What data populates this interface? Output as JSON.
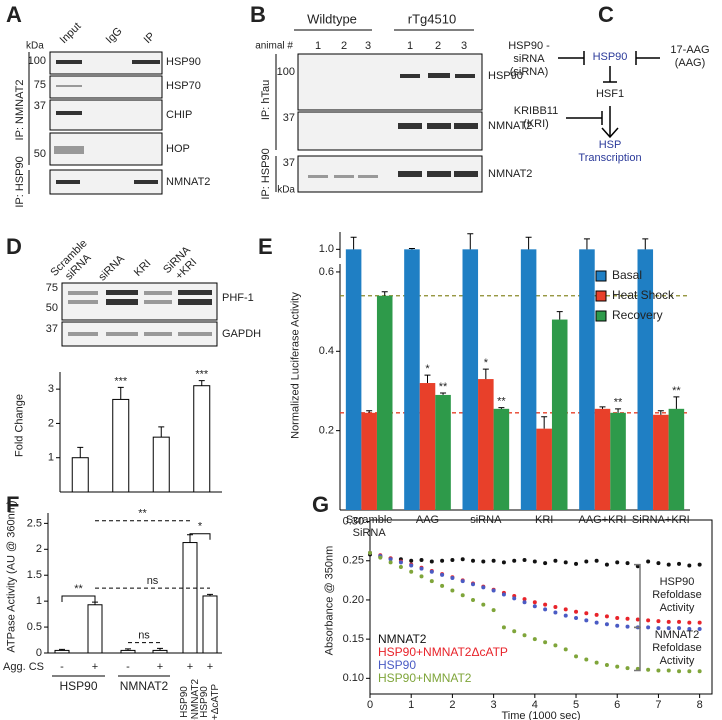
{
  "panels": {
    "A": {
      "letter": "A",
      "kda": "kDa",
      "lanes": [
        "Input",
        "IgG",
        "IP"
      ],
      "markers": [
        100,
        75,
        37,
        50
      ],
      "bands": [
        "HSP90",
        "HSP70",
        "CHIP",
        "HOP",
        "NMNAT2"
      ],
      "ip": [
        "IP: NMNAT2",
        "IP: HSP90"
      ]
    },
    "B": {
      "letter": "B",
      "groups": [
        "Wildtype",
        "rTg4510"
      ],
      "animal": "animal #",
      "lanes": [
        1,
        2,
        3,
        1,
        2,
        3
      ],
      "markers": [
        100,
        37,
        37
      ],
      "kda": "kDa",
      "bands": [
        "HSP90",
        "NMNAT2",
        "NMNAT2"
      ],
      "ip": [
        "IP: hTau",
        "IP: HSP90"
      ]
    },
    "C": {
      "letter": "C",
      "nodes": [
        "HSP90 -siRNA (siRNA)",
        "HSP90",
        "17-AAG (AAG)",
        "HSF1",
        "KRIBB11 (KRI)",
        "HSP Transcription"
      ]
    },
    "D": {
      "letter": "D",
      "lanes": [
        "Scramble siRNA",
        "siRNA",
        "KRI",
        "SiRNA +KRI"
      ],
      "markers": [
        75,
        50,
        37
      ],
      "bands": [
        "PHF-1",
        "GAPDH"
      ]
    },
    "E": {
      "letter": "E"
    },
    "F": {
      "letter": "F"
    },
    "G": {
      "letter": "G"
    }
  },
  "chart_data": [
    {
      "type": "bar",
      "categories": [
        null,
        null,
        null,
        null
      ],
      "values": [
        1,
        2.7,
        1.6,
        3.1
      ],
      "errors": [
        0.3,
        0.35,
        0.3,
        0.15
      ],
      "significance": [
        null,
        "***",
        null,
        "***"
      ],
      "color": "#ffffff",
      "ylim": [
        0,
        3.5
      ],
      "yticks": [
        1,
        2,
        3
      ],
      "y_label": "Fold Change"
    },
    {
      "type": "bar",
      "categories": [
        "Scramble SiRNA",
        "AAG",
        "siRNA",
        "KRI",
        "AAG+KRI",
        "SiRNA+KRI"
      ],
      "series": [
        {
          "name": "Basal",
          "color": "#1f7fc4",
          "values": [
            1,
            1,
            1,
            1,
            1,
            1
          ],
          "errors": [
            0.07,
            0.005,
            0.09,
            0.07,
            0.06,
            0.06
          ]
        },
        {
          "name": "Heat Shock",
          "color": "#e8402a",
          "values": [
            0.245,
            0.32,
            0.33,
            0.205,
            0.255,
            0.24
          ],
          "errors": [
            0.005,
            0.02,
            0.025,
            0.03,
            0.005,
            0.01
          ],
          "significance": [
            null,
            "*",
            "*",
            null,
            null,
            null
          ]
        },
        {
          "name": "Recovery",
          "color": "#2e9a4a",
          "values": [
            0.54,
            0.29,
            0.255,
            0.48,
            0.245,
            0.255
          ],
          "errors": [
            0.01,
            0.005,
            0.003,
            0.02,
            0.01,
            0.03
          ],
          "significance": [
            null,
            "**",
            "**",
            null,
            "**",
            "**"
          ]
        }
      ],
      "ylim": [
        0,
        1.1
      ],
      "axis_break": [
        0.62,
        0.95
      ],
      "yticks": [
        0.2,
        0.4,
        0.6,
        {
          "value": 1,
          "label": "1.0"
        }
      ],
      "y_label": "Normalized Luciferase Activity",
      "reference_lines": [
        {
          "value": 0.54,
          "color": "#8a8a2a"
        },
        {
          "value": 0.245,
          "color": "#e8402a"
        }
      ]
    },
    {
      "type": "bar",
      "categories": [
        "-",
        "+",
        "-",
        "+",
        "+",
        "+"
      ],
      "values": [
        0.05,
        0.93,
        0.05,
        0.05,
        2.13,
        1.1
      ],
      "errors": [
        0.02,
        0.05,
        0.03,
        0.04,
        0.15,
        0.03
      ],
      "color": "#ffffff",
      "ylim": [
        0,
        2.7
      ],
      "yticks": [
        0,
        0.5,
        1,
        1.5,
        2,
        2.5
      ],
      "y_label": "ATPase Activity (AU @ 360nm)",
      "row_label": "Agg. CS",
      "groups": [
        {
          "label": "HSP90",
          "span": [
            0,
            1
          ]
        },
        {
          "label": "NMNAT2",
          "span": [
            2,
            3
          ]
        },
        {
          "label": "HSP90 +NMNAT2",
          "span": [
            4,
            4
          ]
        },
        {
          "label": "HSP90 +ΔcATP",
          "span": [
            5,
            5
          ]
        }
      ],
      "comparisons": [
        {
          "from": 0,
          "to": 1,
          "y": 1.1,
          "label": "**",
          "dashed": false
        },
        {
          "from": 1,
          "to": 5,
          "y": 1.25,
          "label": "ns",
          "dashed": true
        },
        {
          "from": 2,
          "to": 3,
          "y": 0.2,
          "label": "ns",
          "dashed": true
        },
        {
          "from": 1,
          "to": 4,
          "y": 2.55,
          "label": "**",
          "dashed": true
        },
        {
          "from": 4,
          "to": 5,
          "y": 2.3,
          "label": "*",
          "dashed": false
        }
      ]
    },
    {
      "type": "scatter",
      "x_label": "Time (1000 sec)",
      "y_label": "Absorbance @ 350nm",
      "x": [
        0,
        0.25,
        0.5,
        0.75,
        1,
        1.25,
        1.5,
        1.75,
        2,
        2.25,
        2.5,
        2.75,
        3,
        3.25,
        3.5,
        3.75,
        4,
        4.25,
        4.5,
        4.75,
        5,
        5.25,
        5.5,
        5.75,
        6,
        6.25,
        6.5,
        6.75,
        7,
        7.25,
        7.5,
        7.75,
        8
      ],
      "xlim": [
        0,
        8.3
      ],
      "xticks": [
        0,
        1,
        2,
        3,
        4,
        5,
        6,
        7,
        8
      ],
      "ylim": [
        0.08,
        0.302
      ],
      "yticks": [
        {
          "value": 0.1,
          "label": "0.10"
        },
        0.15,
        {
          "value": 0.2,
          "label": "0.20"
        },
        0.25,
        {
          "value": 0.3,
          "label": "0.30"
        }
      ],
      "series": [
        {
          "name": "NMNAT2",
          "color": "#111111",
          "values": [
            0.258,
            0.255,
            0.253,
            0.252,
            0.25,
            0.251,
            0.249,
            0.25,
            0.251,
            0.252,
            0.25,
            0.249,
            0.25,
            0.248,
            0.25,
            0.251,
            0.249,
            0.247,
            0.25,
            0.248,
            0.246,
            0.249,
            0.25,
            0.245,
            0.248,
            0.247,
            0.243,
            0.249,
            0.247,
            0.245,
            0.246,
            0.244,
            0.245
          ]
        },
        {
          "name": "HSP90+NMNAT2ΔcATP",
          "color": "#e8232a",
          "values": [
            0.26,
            0.257,
            0.253,
            0.249,
            0.245,
            0.241,
            0.237,
            0.233,
            0.229,
            0.225,
            0.221,
            0.217,
            0.213,
            0.209,
            0.205,
            0.201,
            0.197,
            0.194,
            0.191,
            0.188,
            0.185,
            0.183,
            0.181,
            0.179,
            0.177,
            0.176,
            0.175,
            0.174,
            0.173,
            0.172,
            0.172,
            0.171,
            0.171
          ]
        },
        {
          "name": "HSP90",
          "color": "#4a5bc4",
          "values": [
            0.26,
            0.256,
            0.252,
            0.248,
            0.244,
            0.24,
            0.236,
            0.232,
            0.228,
            0.224,
            0.22,
            0.216,
            0.212,
            0.207,
            0.202,
            0.197,
            0.192,
            0.188,
            0.184,
            0.18,
            0.177,
            0.174,
            0.171,
            0.169,
            0.167,
            0.166,
            0.165,
            0.165,
            0.164,
            0.164,
            0.164,
            0.163,
            0.163
          ]
        },
        {
          "name": "HSP90+NMNAT2",
          "color": "#7fa53a",
          "values": [
            0.26,
            0.254,
            0.248,
            0.242,
            0.236,
            0.23,
            0.224,
            0.218,
            0.212,
            0.206,
            0.2,
            0.194,
            0.187,
            0.165,
            0.16,
            0.155,
            0.15,
            0.146,
            0.142,
            0.137,
            0.128,
            0.124,
            0.12,
            0.117,
            0.115,
            0.113,
            0.112,
            0.111,
            0.11,
            0.11,
            0.109,
            0.109,
            0.109
          ]
        }
      ],
      "annotations": [
        {
          "text": "HSP90 Refoldase Activity",
          "from": 0.245,
          "to": 0.165
        },
        {
          "text": "NMNAT2 Refoldase Activity",
          "from": 0.165,
          "to": 0.11
        }
      ]
    }
  ]
}
